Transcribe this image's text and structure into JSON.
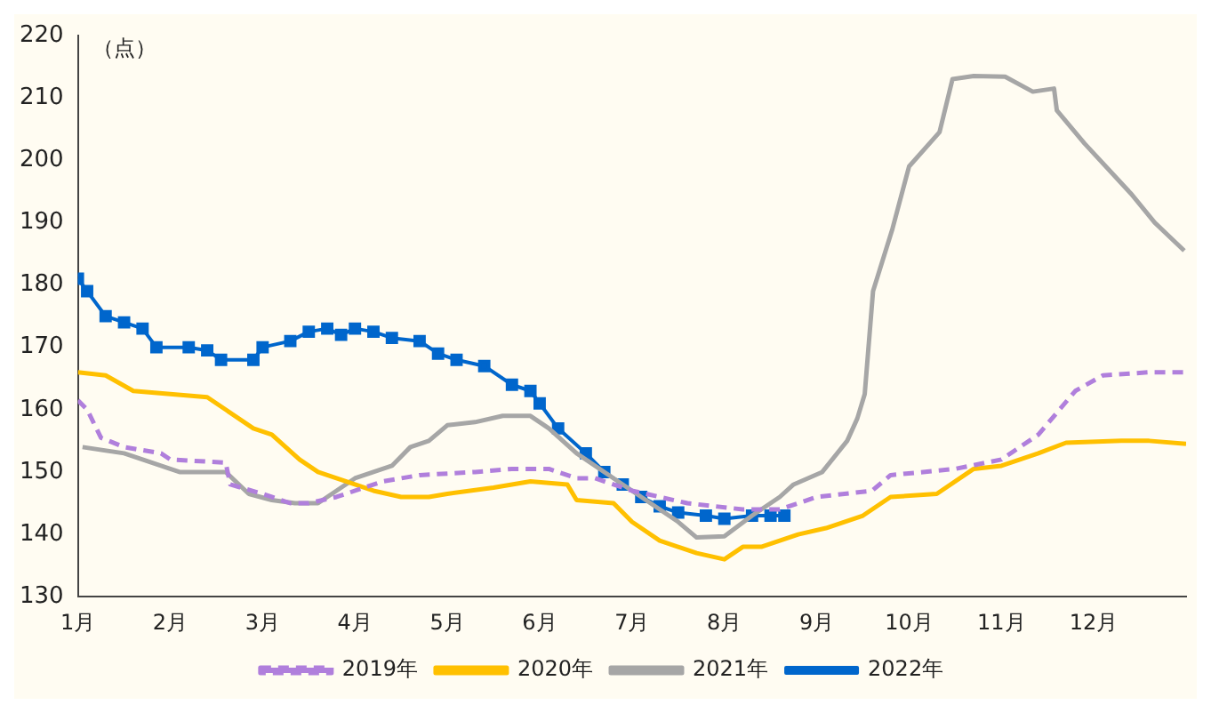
{
  "chart_data": {
    "type": "line",
    "ylabel": "（点）",
    "xlim": [
      1,
      13
    ],
    "ylim": [
      130,
      220
    ],
    "xticks": [
      {
        "value": 1,
        "label": "1月"
      },
      {
        "value": 2,
        "label": "2月"
      },
      {
        "value": 3,
        "label": "3月"
      },
      {
        "value": 4,
        "label": "4月"
      },
      {
        "value": 5,
        "label": "5月"
      },
      {
        "value": 6,
        "label": "6月"
      },
      {
        "value": 7,
        "label": "7月"
      },
      {
        "value": 8,
        "label": "8月"
      },
      {
        "value": 9,
        "label": "9月"
      },
      {
        "value": 10,
        "label": "10月"
      },
      {
        "value": 11,
        "label": "11月"
      },
      {
        "value": 12,
        "label": "12月"
      }
    ],
    "yticks": [
      130,
      140,
      150,
      160,
      170,
      180,
      190,
      200,
      210,
      220
    ],
    "grid": false,
    "legend": "bottom",
    "series": [
      {
        "name": "2019年",
        "color": "#b07fdc",
        "line_style": "dashed",
        "marker": "none",
        "x": [
          1,
          1.1,
          1.25,
          1.5,
          1.9,
          2.0,
          2.6,
          2.65,
          3.0,
          3.3,
          3.5,
          3.8,
          4.3,
          4.7,
          5.3,
          5.7,
          6.1,
          6.4,
          6.6,
          7.0,
          7.6,
          8.2,
          8.6,
          9.0,
          9.6,
          9.8,
          10.5,
          11.0,
          11.4,
          11.8,
          12.1,
          12.6,
          13
        ],
        "values": [
          161.5,
          160,
          155.5,
          154,
          153,
          152,
          151.5,
          148,
          146.5,
          145,
          145,
          146,
          148.5,
          149.5,
          150,
          150.5,
          150.5,
          149,
          149,
          147,
          145,
          144,
          144,
          146,
          147,
          149.5,
          150.5,
          152,
          156,
          163,
          165.5,
          166,
          166
        ]
      },
      {
        "name": "2020年",
        "color": "#ffc000",
        "line_style": "solid",
        "marker": "none",
        "x": [
          1,
          1.3,
          1.6,
          2.0,
          2.4,
          2.6,
          2.9,
          3.1,
          3.4,
          3.6,
          3.9,
          4.2,
          4.5,
          4.8,
          5.0,
          5.5,
          5.9,
          6.3,
          6.4,
          6.8,
          7.0,
          7.3,
          7.7,
          8.0,
          8.2,
          8.4,
          8.8,
          9.1,
          9.5,
          9.8,
          10.3,
          10.7,
          11.0,
          11.4,
          11.7,
          12.3,
          12.6,
          13
        ],
        "values": [
          166,
          165.5,
          163,
          162.5,
          162,
          160,
          157,
          156,
          152,
          150,
          148.5,
          147,
          146,
          146,
          146.5,
          147.5,
          148.5,
          148,
          145.5,
          145,
          142,
          139,
          137,
          136,
          138,
          138,
          140,
          141,
          143,
          146,
          146.5,
          150.5,
          151,
          153,
          154.7,
          155,
          155,
          154.5
        ]
      },
      {
        "name": "2021年",
        "color": "#a6a6a6",
        "line_style": "solid",
        "marker": "none",
        "x": [
          1.05,
          1.5,
          1.7,
          1.9,
          2.1,
          2.6,
          2.85,
          3.1,
          3.35,
          3.6,
          3.8,
          4.0,
          4.2,
          4.4,
          4.6,
          4.8,
          5.0,
          5.3,
          5.6,
          5.9,
          6.1,
          6.4,
          6.8,
          7.2,
          7.5,
          7.7,
          8.0,
          8.3,
          8.6,
          8.75,
          9.06,
          9.33,
          9.44,
          9.52,
          9.61,
          9.82,
          10.0,
          10.33,
          10.47,
          10.7,
          11.04,
          11.34,
          11.57,
          11.6,
          11.9,
          12.4,
          12.66,
          12.98
        ],
        "values": [
          154,
          153,
          152,
          151,
          150,
          150,
          146.5,
          145.5,
          145,
          145,
          147,
          149,
          150,
          151,
          154,
          155,
          157.5,
          158,
          159,
          159,
          157,
          153,
          149,
          145,
          142,
          139.5,
          139.7,
          143,
          146,
          148,
          150,
          155,
          158.6,
          162.5,
          179,
          189,
          199,
          204.5,
          213,
          213.5,
          213.4,
          211,
          211.5,
          208,
          202.7,
          194.7,
          190,
          185.5
        ]
      },
      {
        "name": "2022年",
        "color": "#0066cc",
        "line_style": "solid",
        "marker": "square",
        "x": [
          1.0,
          1.1,
          1.3,
          1.5,
          1.7,
          1.85,
          2.2,
          2.4,
          2.55,
          2.9,
          3.0,
          3.3,
          3.5,
          3.7,
          3.85,
          4.0,
          4.2,
          4.4,
          4.7,
          4.9,
          5.1,
          5.4,
          5.7,
          5.9,
          6.0,
          6.2,
          6.5,
          6.7,
          6.9,
          7.1,
          7.3,
          7.5,
          7.8,
          8.0,
          8.3,
          8.5,
          8.65
        ],
        "values": [
          181,
          179,
          175,
          174,
          173,
          170,
          170,
          169.5,
          168,
          168,
          170,
          171,
          172.5,
          173,
          172,
          173,
          172.5,
          171.5,
          171,
          169,
          168,
          167,
          164,
          163,
          161,
          157,
          153,
          150,
          148,
          146,
          144.5,
          143.5,
          143,
          142.5,
          143,
          143,
          143
        ]
      }
    ]
  }
}
